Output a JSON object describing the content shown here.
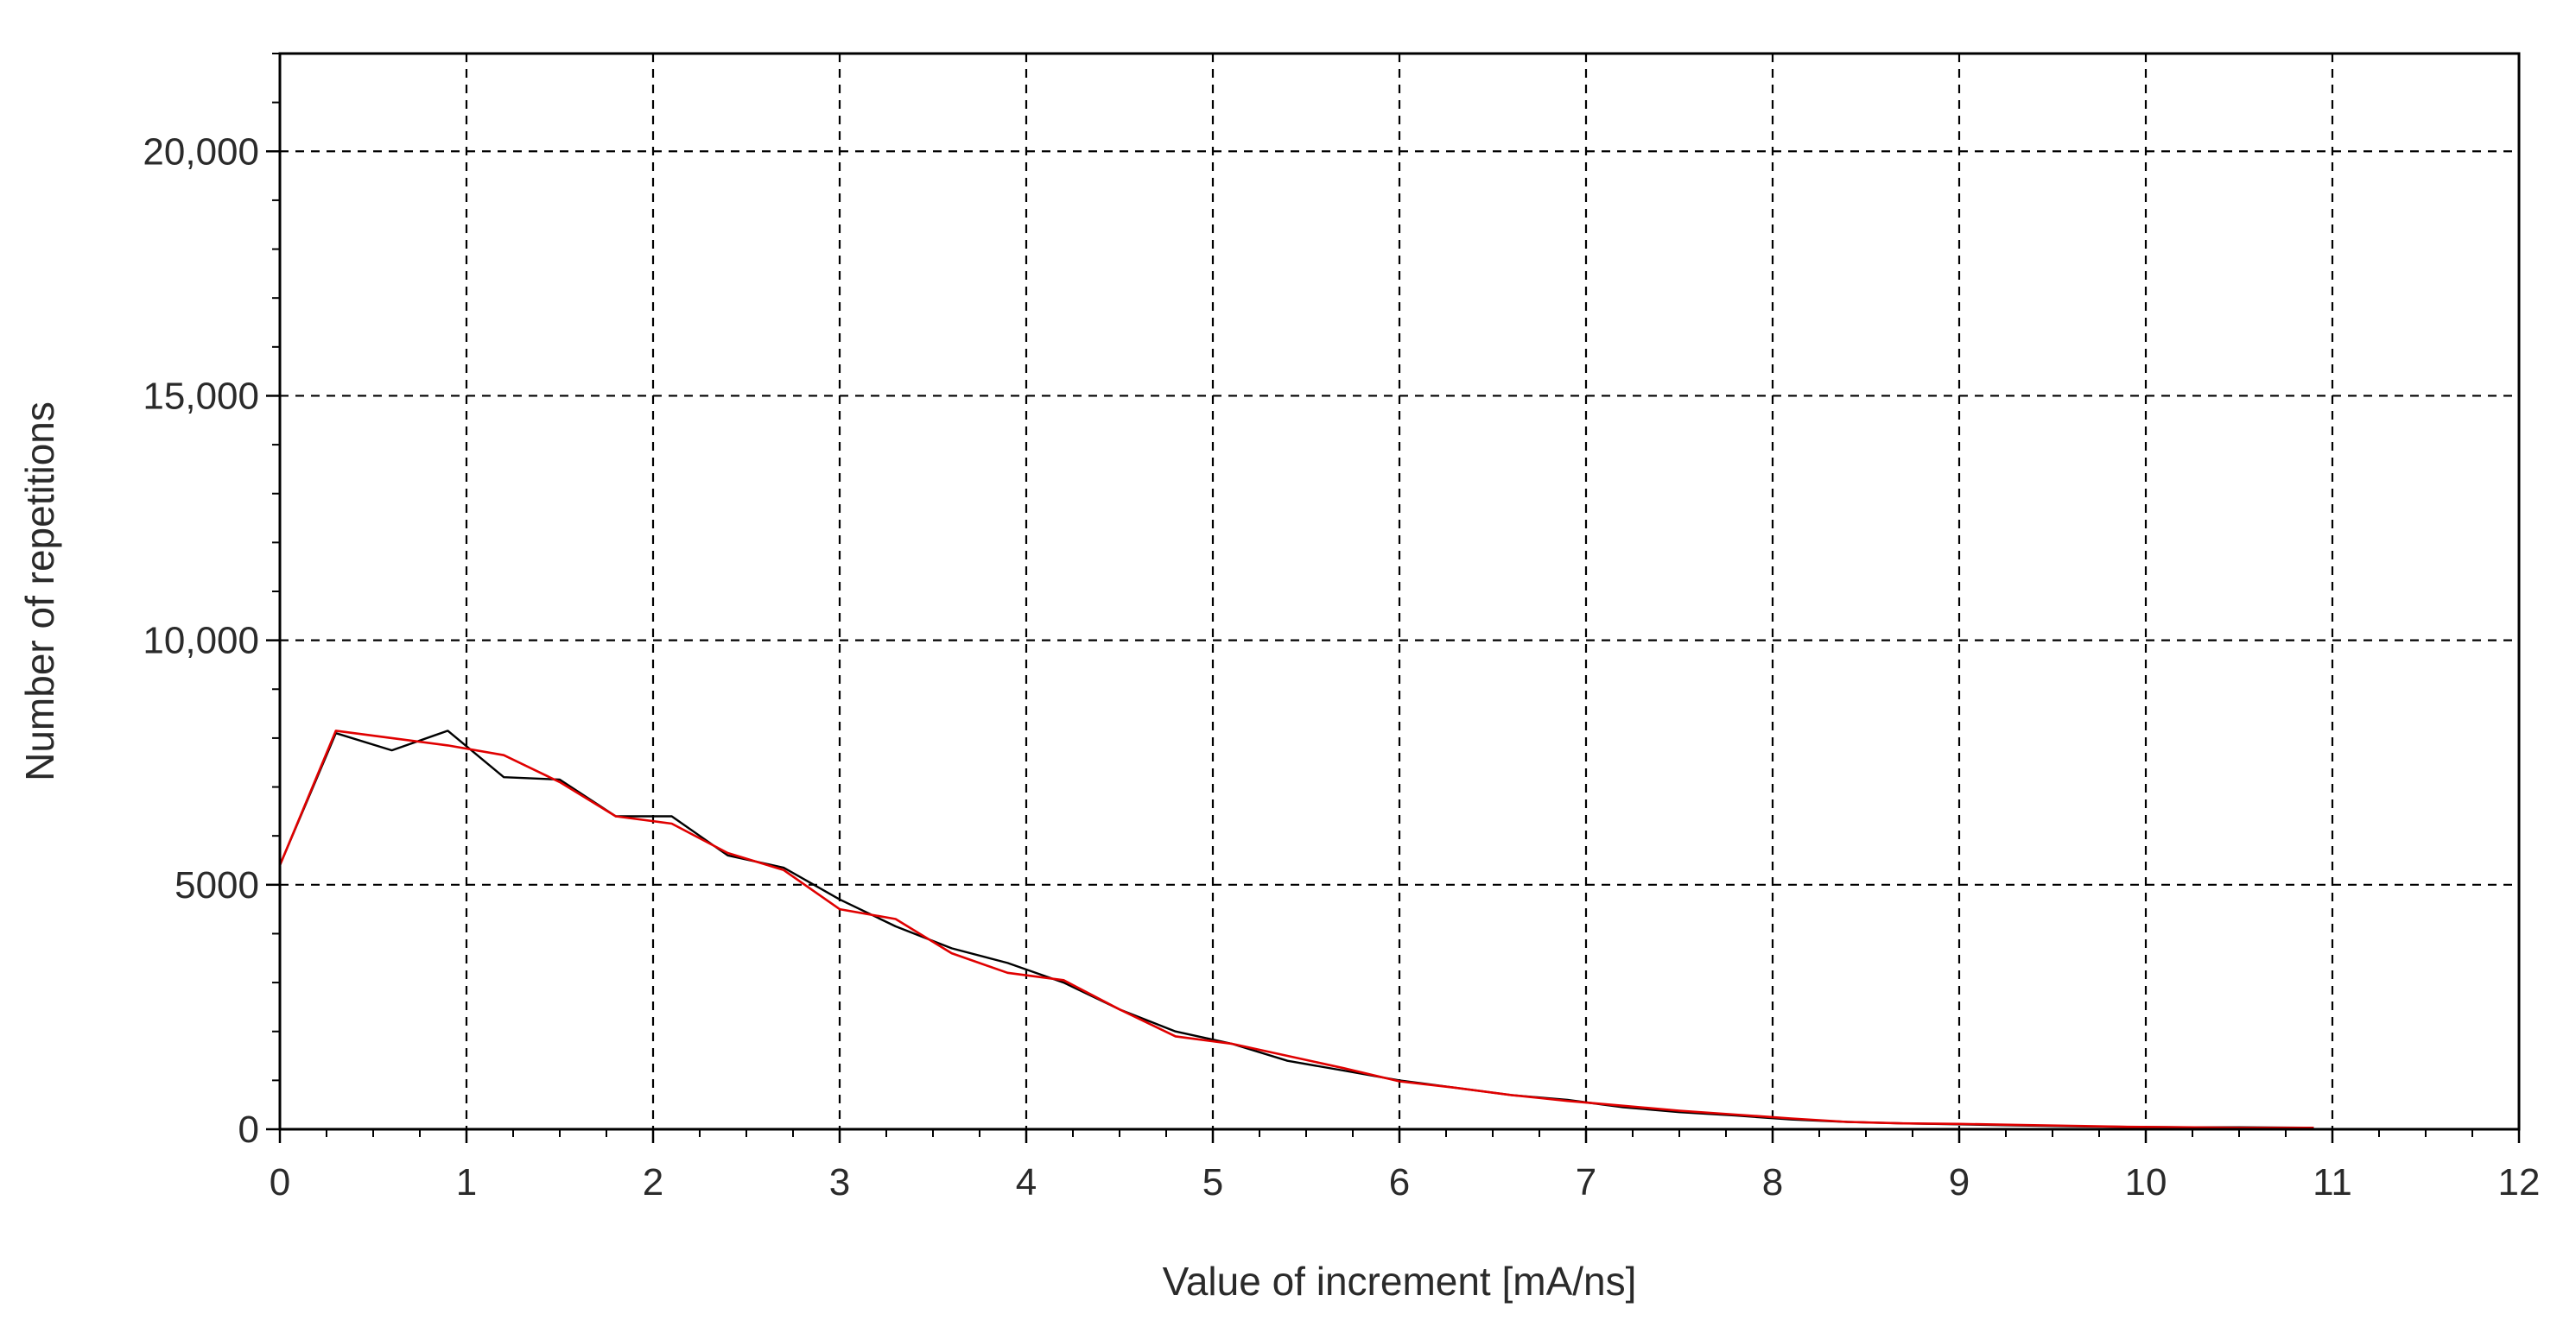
{
  "chart_data": {
    "type": "line",
    "title": "",
    "xlabel": "Value of increment [mA/ns]",
    "ylabel": "Number of repetitions",
    "xlim": [
      0,
      12
    ],
    "ylim": [
      0,
      22000
    ],
    "x_ticks": [
      {
        "value": 0,
        "label": "0"
      },
      {
        "value": 1,
        "label": "1"
      },
      {
        "value": 2,
        "label": "2"
      },
      {
        "value": 3,
        "label": "3"
      },
      {
        "value": 4,
        "label": "4"
      },
      {
        "value": 5,
        "label": "5"
      },
      {
        "value": 6,
        "label": "6"
      },
      {
        "value": 7,
        "label": "7"
      },
      {
        "value": 8,
        "label": "8"
      },
      {
        "value": 9,
        "label": "9"
      },
      {
        "value": 10,
        "label": "10"
      },
      {
        "value": 11,
        "label": "11"
      },
      {
        "value": 12,
        "label": "12"
      }
    ],
    "y_ticks": [
      {
        "value": 0,
        "label": "0"
      },
      {
        "value": 5000,
        "label": "5000"
      },
      {
        "value": 10000,
        "label": "10,000"
      },
      {
        "value": 15000,
        "label": "15,000"
      },
      {
        "value": 20000,
        "label": "20,000"
      }
    ],
    "grid": true,
    "legend": "none",
    "series": [
      {
        "color": "#000000",
        "x": [
          0,
          0.3,
          0.6,
          0.9,
          1.2,
          1.5,
          1.8,
          2.1,
          2.4,
          2.7,
          3.0,
          3.3,
          3.6,
          3.9,
          4.2,
          4.5,
          4.8,
          5.1,
          5.4,
          5.7,
          6.0,
          6.3,
          6.6,
          6.9,
          7.2,
          7.5,
          7.8,
          8.1,
          8.4,
          8.7,
          9.0,
          9.3,
          9.6,
          9.9,
          10.2,
          10.5,
          10.9
        ],
        "y": [
          5400,
          8100,
          7750,
          8150,
          7200,
          7150,
          6400,
          6400,
          5600,
          5350,
          4700,
          4150,
          3700,
          3400,
          3000,
          2450,
          2000,
          1750,
          1400,
          1200,
          1000,
          850,
          700,
          600,
          450,
          350,
          280,
          200,
          150,
          120,
          100,
          80,
          60,
          50,
          40,
          40,
          30
        ]
      },
      {
        "color": "#e00000",
        "x": [
          0,
          0.3,
          0.6,
          0.9,
          1.2,
          1.5,
          1.8,
          2.1,
          2.4,
          2.7,
          3.0,
          3.3,
          3.6,
          3.9,
          4.2,
          4.5,
          4.8,
          5.1,
          5.4,
          5.7,
          6.0,
          6.3,
          6.6,
          6.9,
          7.2,
          7.5,
          7.8,
          8.1,
          8.4,
          8.7,
          9.0,
          9.3,
          9.6,
          9.9,
          10.2,
          10.5,
          10.9
        ],
        "y": [
          5400,
          8150,
          8000,
          7850,
          7650,
          7100,
          6400,
          6250,
          5650,
          5300,
          4500,
          4300,
          3600,
          3200,
          3050,
          2450,
          1900,
          1750,
          1500,
          1250,
          980,
          850,
          700,
          580,
          480,
          380,
          300,
          220,
          150,
          120,
          110,
          90,
          70,
          50,
          40,
          30,
          30
        ]
      }
    ]
  }
}
